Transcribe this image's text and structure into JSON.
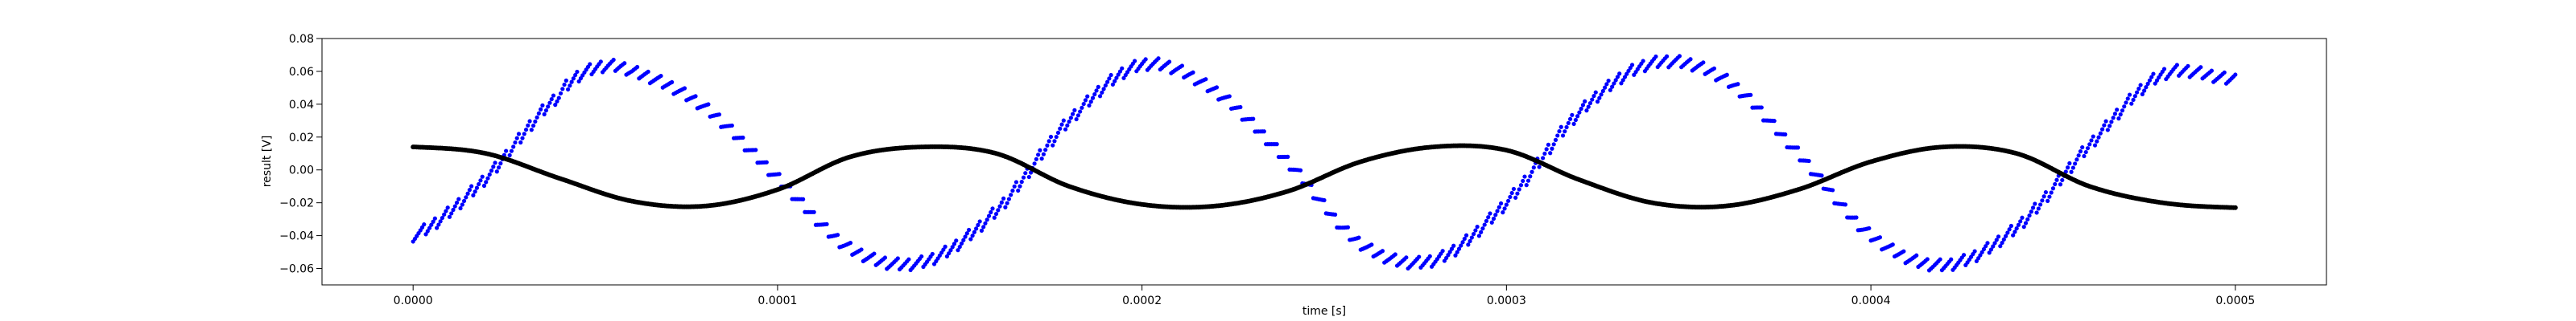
{
  "chart_data": {
    "type": "scatter",
    "title": "",
    "xlabel": "time [s]",
    "ylabel": "result [V]",
    "xlim": [
      -2.5e-05,
      0.000525
    ],
    "ylim": [
      -0.07,
      0.08
    ],
    "xticks": [
      0.0,
      0.0001,
      0.0002,
      0.0003,
      0.0004,
      0.0005
    ],
    "xtick_labels": [
      "0.0000",
      "0.0001",
      "0.0002",
      "0.0003",
      "0.0004",
      "0.0005"
    ],
    "yticks": [
      -0.06,
      -0.04,
      -0.02,
      0.0,
      0.02,
      0.04,
      0.06,
      0.08
    ],
    "ytick_labels": [
      "−0.06",
      "−0.04",
      "−0.02",
      "0.00",
      "0.02",
      "0.04",
      "0.06",
      "0.08"
    ],
    "grid": false,
    "legend": "none",
    "series": [
      {
        "color": "#0000ff",
        "marker": "dot",
        "x": [
          0.0,
          2e-05,
          4e-05,
          5e-05,
          6e-05,
          8e-05,
          0.0001,
          0.00012,
          0.00014,
          0.00016,
          0.00018,
          0.0002,
          0.00022,
          0.00024,
          0.00026,
          0.00028,
          0.0003,
          0.00032,
          0.00034,
          0.00036,
          0.00038,
          0.0004,
          0.00042,
          0.00044,
          0.00046,
          0.00048,
          0.0005
        ],
        "y": [
          -0.04,
          -0.005,
          0.045,
          0.062,
          0.06,
          0.038,
          -0.005,
          -0.048,
          -0.056,
          -0.025,
          0.03,
          0.064,
          0.048,
          0.005,
          -0.045,
          -0.055,
          -0.02,
          0.035,
          0.065,
          0.055,
          0.01,
          -0.04,
          -0.058,
          -0.035,
          0.015,
          0.058,
          0.055
        ]
      },
      {
        "color": "#000000",
        "marker": "dot",
        "x": [
          0.0,
          2e-05,
          4e-05,
          6e-05,
          8e-05,
          0.0001,
          0.00012,
          0.00014,
          0.00016,
          0.00018,
          0.0002,
          0.00022,
          0.00024,
          0.00026,
          0.00028,
          0.0003,
          0.00032,
          0.00034,
          0.00036,
          0.00038,
          0.0004,
          0.00042,
          0.00044,
          0.00046,
          0.00048,
          0.0005
        ],
        "y": [
          0.014,
          0.01,
          -0.005,
          -0.019,
          -0.022,
          -0.012,
          0.008,
          0.014,
          0.01,
          -0.01,
          -0.021,
          -0.022,
          -0.013,
          0.005,
          0.014,
          0.012,
          -0.006,
          -0.02,
          -0.022,
          -0.012,
          0.005,
          0.014,
          0.01,
          -0.01,
          -0.02,
          -0.023
        ]
      }
    ]
  }
}
